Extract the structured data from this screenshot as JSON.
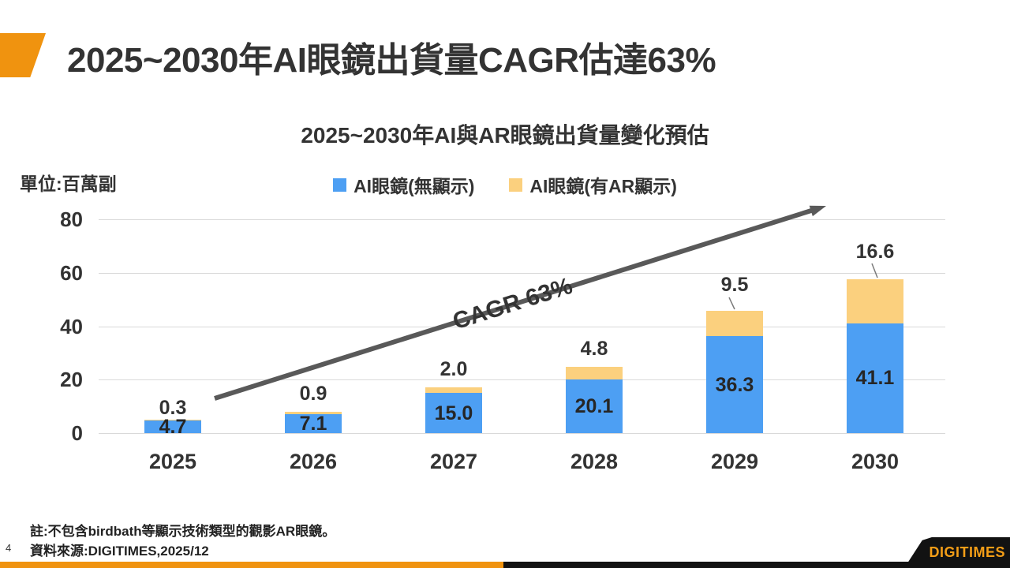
{
  "page": {
    "title": "2025~2030年AI眼鏡出貨量CAGR估達63%",
    "note": "註:不包含birdbath等顯示技術類型的觀影AR眼鏡。",
    "source": "資料來源:DIGITIMES,2025/12",
    "page_number": "4",
    "logo_text": "DIGITIMES"
  },
  "colors": {
    "accent_orange": "#F0930F",
    "bar_blue": "#4D9FF3",
    "bar_yellow": "#FBD07E",
    "arrow_gray": "#595959",
    "gridline_gray": "#D9D9D9"
  },
  "chart_data": {
    "type": "bar",
    "stacked": true,
    "title": "2025~2030年AI與AR眼鏡出貨量變化預估",
    "unit_label": "單位:百萬副",
    "categories": [
      "2025",
      "2026",
      "2027",
      "2028",
      "2029",
      "2030"
    ],
    "series": [
      {
        "name": "AI眼鏡(無顯示)",
        "color": "#4D9FF3",
        "values": [
          4.7,
          7.1,
          15.0,
          20.1,
          36.3,
          41.1
        ],
        "labels": [
          "4.7",
          "7.1",
          "15.0",
          "20.1",
          "36.3",
          "41.1"
        ]
      },
      {
        "name": "AI眼鏡(有AR顯示)",
        "color": "#FBD07E",
        "values": [
          0.3,
          0.9,
          2.0,
          4.8,
          9.5,
          16.6
        ],
        "labels": [
          "0.3",
          "0.9",
          "2.0",
          "4.8",
          "9.5",
          "16.6"
        ]
      }
    ],
    "ylim": [
      0,
      80
    ],
    "yticks": [
      0,
      20,
      40,
      60,
      80
    ],
    "grid": true,
    "legend_position": "top-center",
    "annotation": "CAGR 63%"
  }
}
